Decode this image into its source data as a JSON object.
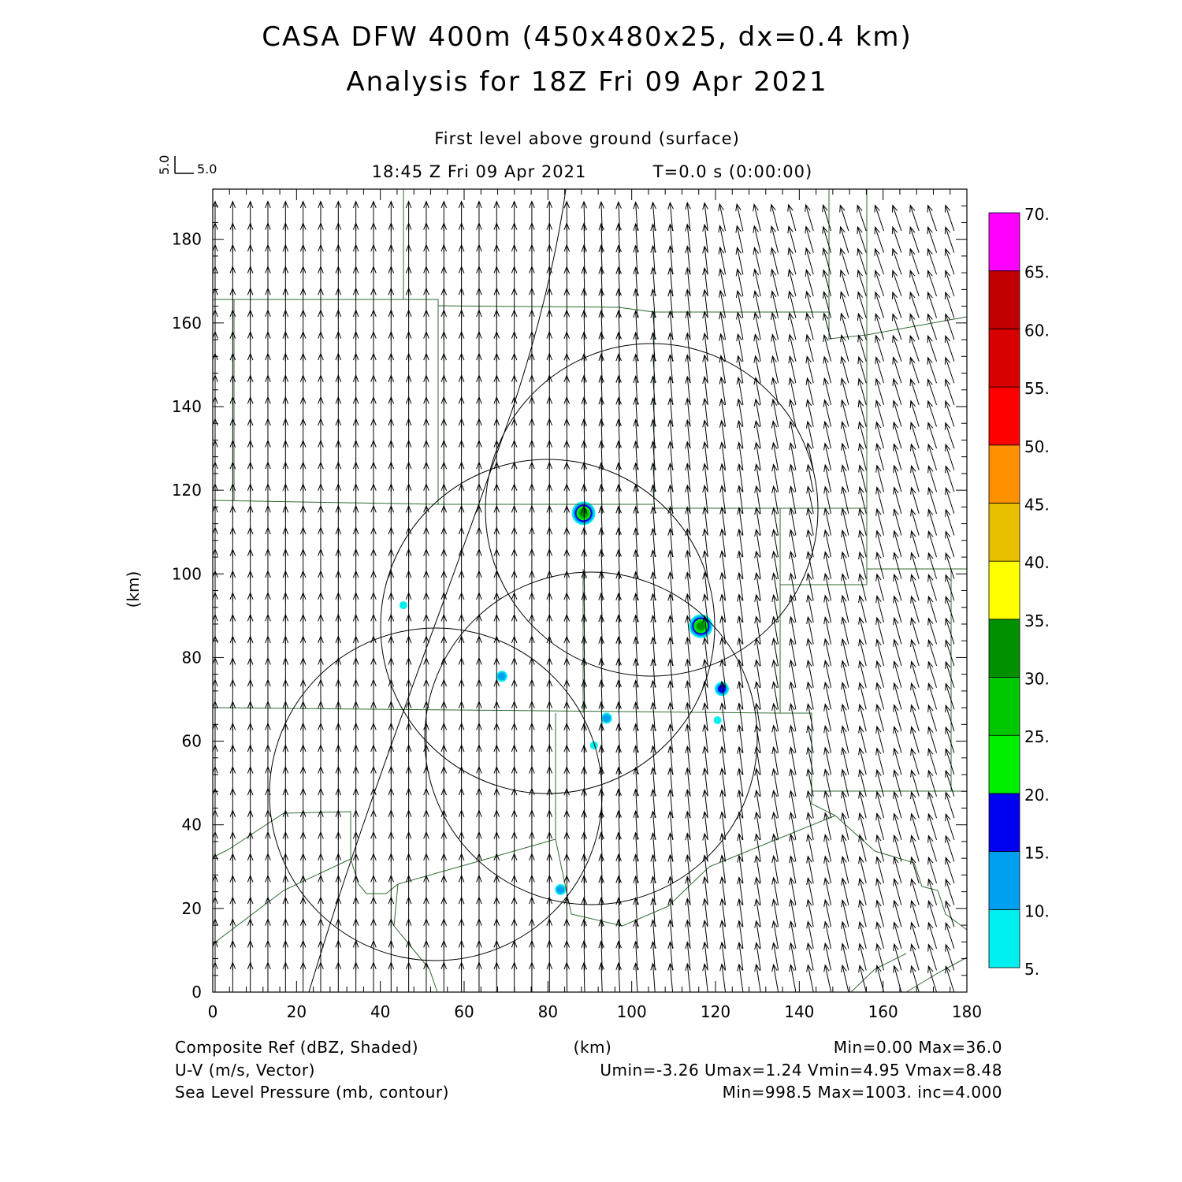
{
  "header": {
    "title_line1": "CASA DFW 400m (450x480x25, dx=0.4 km)",
    "title_line2": "Analysis for 18Z Fri 09 Apr 2021",
    "level": "First level above ground (surface)",
    "time": "18:45 Z Fri 09 Apr 2021",
    "integration": "T=0.0 s (0:00:00)"
  },
  "vector_key": {
    "u_label": "5.0",
    "v_label": "5.0"
  },
  "axes": {
    "x_unit": "(km)",
    "y_unit": "(km)",
    "x_ticks": [
      "0",
      "20",
      "40",
      "60",
      "80",
      "100",
      "120",
      "140",
      "160",
      "180"
    ],
    "y_ticks": [
      "0",
      "20",
      "40",
      "60",
      "80",
      "100",
      "120",
      "140",
      "160",
      "180"
    ],
    "x_range": [
      0,
      180
    ],
    "y_range": [
      0,
      192
    ]
  },
  "colorbar": {
    "labels": [
      "5.",
      "10.",
      "15.",
      "20.",
      "25.",
      "30.",
      "35.",
      "40.",
      "45.",
      "50.",
      "55.",
      "60.",
      "65.",
      "70."
    ],
    "colors": [
      "#00f0f0",
      "#00a0f0",
      "#0000f0",
      "#00f000",
      "#00c800",
      "#009000",
      "#ffff00",
      "#e8c000",
      "#ff9000",
      "#ff0000",
      "#d80000",
      "#c00000",
      "#ff00ff"
    ]
  },
  "footer": {
    "field1_name": "Composite Ref (dBZ, Shaded)",
    "field1_stats": "Min=0.00 Max=36.0",
    "field2_name": "U-V (m/s, Vector)",
    "field2_stats": "Umin=-3.26 Umax=1.24 Vmin=4.95 Vmax=8.48",
    "field3_name": "Sea Level Pressure (mb, contour)",
    "field3_stats": "Min=998.5 Max=1003. inc=4.000",
    "x_unit": "(km)"
  },
  "echoes": [
    {
      "x": 88.5,
      "y": 114.5,
      "dbz": 30
    },
    {
      "x": 116.5,
      "y": 87.5,
      "dbz": 30
    },
    {
      "x": 121.5,
      "y": 72.5,
      "dbz": 18
    },
    {
      "x": 69,
      "y": 75.5,
      "dbz": 10
    },
    {
      "x": 94,
      "y": 65.5,
      "dbz": 10
    },
    {
      "x": 120.5,
      "y": 65,
      "dbz": 8
    },
    {
      "x": 45.5,
      "y": 92.5,
      "dbz": 6
    },
    {
      "x": 91,
      "y": 59,
      "dbz": 6
    },
    {
      "x": 83,
      "y": 24.5,
      "dbz": 12
    }
  ],
  "wind": {
    "u_west": 0.0,
    "v_west": 7.5,
    "u_east": -2.2,
    "v_east": 6.5
  }
}
